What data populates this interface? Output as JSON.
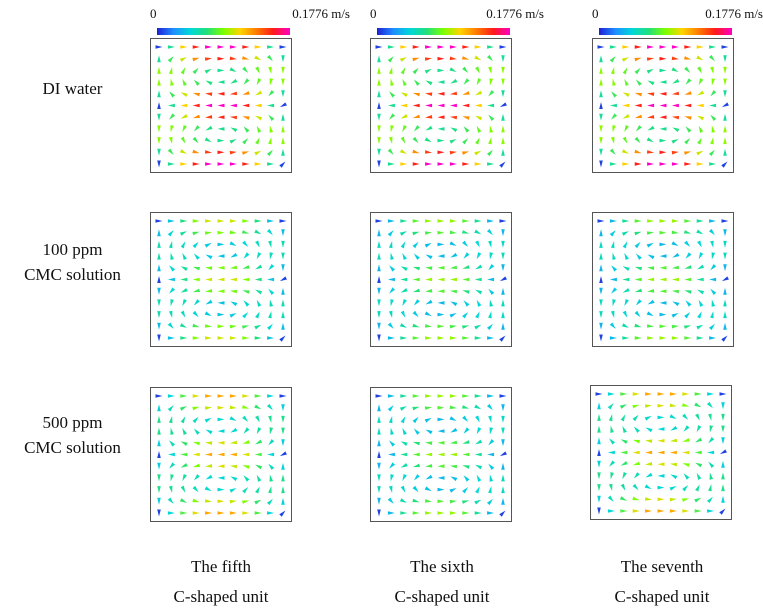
{
  "colorbar": {
    "min": "0",
    "max": "0.1776 m/s"
  },
  "rows": [
    {
      "line1": "DI water",
      "line2": ""
    },
    {
      "line1": "100 ppm",
      "line2": "CMC solution"
    },
    {
      "line1": "500 ppm",
      "line2": "CMC solution"
    }
  ],
  "columns": [
    {
      "line1": "The fifth",
      "line2": "C-shaped unit"
    },
    {
      "line1": "The sixth",
      "line2": "C-shaped unit"
    },
    {
      "line1": "The seventh",
      "line2": "C-shaped unit"
    }
  ],
  "panels": [
    {
      "row": 0,
      "col": 0,
      "peak_velocity": 0.1776
    },
    {
      "row": 0,
      "col": 1,
      "peak_velocity": 0.1776
    },
    {
      "row": 0,
      "col": 2,
      "peak_velocity": 0.1776
    },
    {
      "row": 1,
      "col": 0,
      "peak_velocity": 0.1
    },
    {
      "row": 1,
      "col": 1,
      "peak_velocity": 0.09
    },
    {
      "row": 1,
      "col": 2,
      "peak_velocity": 0.09
    },
    {
      "row": 2,
      "col": 0,
      "peak_velocity": 0.12
    },
    {
      "row": 2,
      "col": 1,
      "peak_velocity": 0.09
    },
    {
      "row": 2,
      "col": 2,
      "peak_velocity": 0.12
    }
  ]
}
